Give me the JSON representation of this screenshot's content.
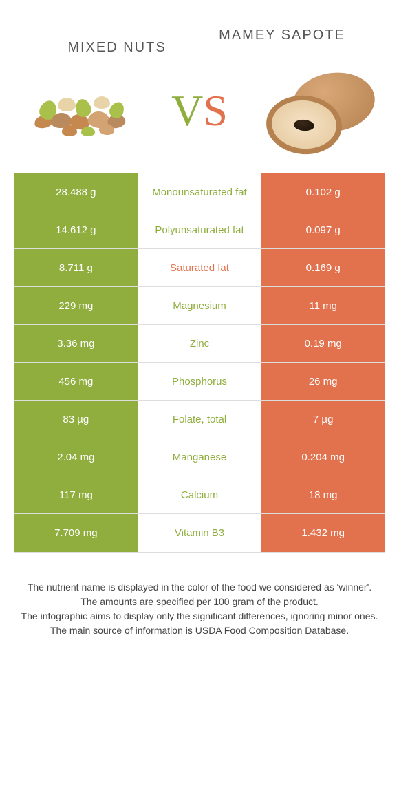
{
  "header": {
    "left_title": "Mixed nuts",
    "right_title": "Mamey Sapote",
    "vs_v": "V",
    "vs_s": "S"
  },
  "colors": {
    "left": "#8fae3e",
    "right": "#e2724e",
    "mid_bg": "#ffffff",
    "border": "#dddddd",
    "text": "#333333"
  },
  "table": {
    "rows": [
      {
        "left": "28.488 g",
        "label": "Monounsaturated fat",
        "right": "0.102 g",
        "winner": "left"
      },
      {
        "left": "14.612 g",
        "label": "Polyunsaturated fat",
        "right": "0.097 g",
        "winner": "left"
      },
      {
        "left": "8.711 g",
        "label": "Saturated fat",
        "right": "0.169 g",
        "winner": "right"
      },
      {
        "left": "229 mg",
        "label": "Magnesium",
        "right": "11 mg",
        "winner": "left"
      },
      {
        "left": "3.36 mg",
        "label": "Zinc",
        "right": "0.19 mg",
        "winner": "left"
      },
      {
        "left": "456 mg",
        "label": "Phosphorus",
        "right": "26 mg",
        "winner": "left"
      },
      {
        "left": "83 µg",
        "label": "Folate, total",
        "right": "7 µg",
        "winner": "left"
      },
      {
        "left": "2.04 mg",
        "label": "Manganese",
        "right": "0.204 mg",
        "winner": "left"
      },
      {
        "left": "117 mg",
        "label": "Calcium",
        "right": "18 mg",
        "winner": "left"
      },
      {
        "left": "7.709 mg",
        "label": "Vitamin B3",
        "right": "1.432 mg",
        "winner": "left"
      }
    ]
  },
  "footer": {
    "line1": "The nutrient name is displayed in the color of the food we considered as 'winner'.",
    "line2": "The amounts are specified per 100 gram of the product.",
    "line3": "The infographic aims to display only the significant differences, ignoring minor ones.",
    "line4": "The main source of information is USDA Food Composition Database."
  },
  "nuts_illustration": [
    {
      "w": 26,
      "h": 18,
      "t": 52,
      "l": 10,
      "c": "#c5884e",
      "r": -10
    },
    {
      "w": 24,
      "h": 28,
      "t": 30,
      "l": 18,
      "c": "#a9c04a",
      "r": 20
    },
    {
      "w": 30,
      "h": 22,
      "t": 48,
      "l": 34,
      "c": "#b98a5e",
      "r": -5
    },
    {
      "w": 26,
      "h": 20,
      "t": 26,
      "l": 44,
      "c": "#e8d4a8",
      "r": 0
    },
    {
      "w": 28,
      "h": 22,
      "t": 50,
      "l": 62,
      "c": "#c5884e",
      "r": 15
    },
    {
      "w": 22,
      "h": 26,
      "t": 28,
      "l": 70,
      "c": "#a9c04a",
      "r": -15
    },
    {
      "w": 32,
      "h": 24,
      "t": 46,
      "l": 88,
      "c": "#d4a373",
      "r": 8
    },
    {
      "w": 24,
      "h": 18,
      "t": 24,
      "l": 96,
      "c": "#e8d4a8",
      "r": 0
    },
    {
      "w": 26,
      "h": 20,
      "t": 50,
      "l": 116,
      "c": "#b98a5e",
      "r": -12
    },
    {
      "w": 20,
      "h": 24,
      "t": 32,
      "l": 120,
      "c": "#a9c04a",
      "r": 25
    },
    {
      "w": 22,
      "h": 16,
      "t": 66,
      "l": 50,
      "c": "#c5884e",
      "r": 0
    },
    {
      "w": 20,
      "h": 14,
      "t": 68,
      "l": 78,
      "c": "#a9c04a",
      "r": 0
    },
    {
      "w": 22,
      "h": 16,
      "t": 64,
      "l": 104,
      "c": "#d4a373",
      "r": 5
    }
  ]
}
